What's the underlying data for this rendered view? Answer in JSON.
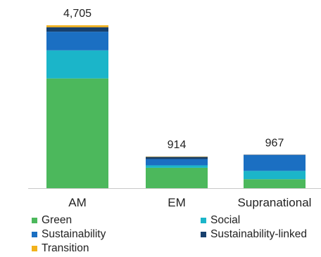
{
  "chart_data": {
    "type": "bar",
    "stacked": true,
    "categories": [
      "AM",
      "EM",
      "Supranational"
    ],
    "totals": [
      "4,705",
      "914",
      "967"
    ],
    "series": [
      {
        "name": "Green",
        "color": "#4cb85c",
        "values": [
          3170,
          590,
          260
        ]
      },
      {
        "name": "Social",
        "color": "#1bb5c9",
        "values": [
          810,
          70,
          240
        ]
      },
      {
        "name": "Sustainability",
        "color": "#1b6fc2",
        "values": [
          540,
          180,
          455
        ]
      },
      {
        "name": "Sustainability-linked",
        "color": "#17406d",
        "values": [
          130,
          64,
          12
        ]
      },
      {
        "name": "Transition",
        "color": "#f2b21c",
        "values": [
          55,
          10,
          0
        ]
      }
    ],
    "ylim": [
      0,
      4705
    ],
    "grid": false,
    "legend_position": "bottom"
  }
}
